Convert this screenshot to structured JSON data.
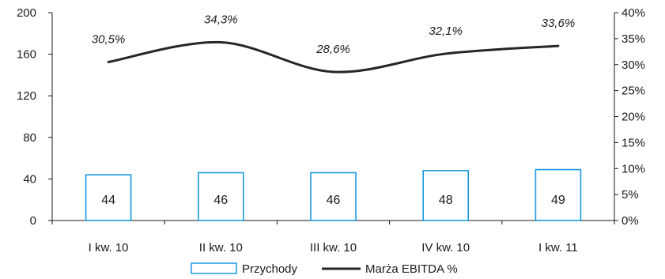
{
  "chart_data": {
    "type": "bar",
    "categories": [
      "I kw. 10",
      "II kw. 10",
      "III kw. 10",
      "IV kw. 10",
      "I kw. 11"
    ],
    "series": [
      {
        "name": "Przychody",
        "type": "bar",
        "axis": "left",
        "values": [
          44,
          46,
          46,
          48,
          49
        ],
        "value_labels": [
          "44",
          "46",
          "46",
          "48",
          "49"
        ]
      },
      {
        "name": "Marża EBITDA %",
        "type": "line",
        "axis": "right",
        "values": [
          30.5,
          34.3,
          28.6,
          32.1,
          33.6
        ],
        "value_labels": [
          "30,5%",
          "34,3%",
          "28,6%",
          "32,1%",
          "33,6%"
        ]
      }
    ],
    "y_left": {
      "min": 0,
      "max": 200,
      "ticks": [
        "0",
        "40",
        "80",
        "120",
        "160",
        "200"
      ]
    },
    "y_right": {
      "min": 0,
      "max": 40,
      "ticks": [
        "0%",
        "5%",
        "10%",
        "15%",
        "20%",
        "25%",
        "30%",
        "35%",
        "40%"
      ]
    },
    "legend_position": "bottom",
    "grid": false,
    "colors": {
      "bar_stroke": "#1a9ae0",
      "line": "#262626",
      "axis": "#1a1a1a"
    }
  }
}
